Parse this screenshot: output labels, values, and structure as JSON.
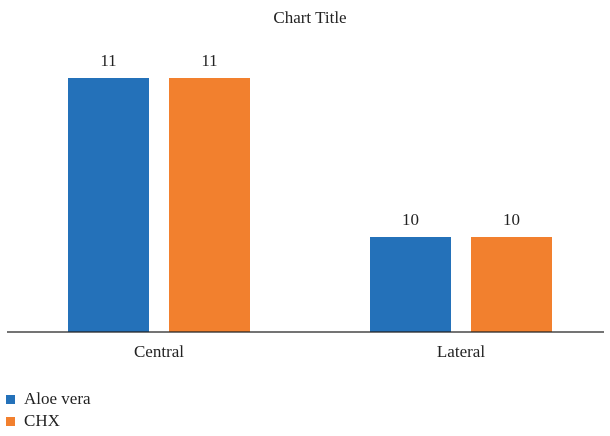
{
  "chart_data": {
    "type": "bar",
    "title": "Chart Title",
    "categories": [
      "Central",
      "Lateral"
    ],
    "series": [
      {
        "name": "Aloe vera",
        "color": "#2471b9",
        "values": [
          11,
          10
        ]
      },
      {
        "name": "CHX",
        "color": "#f2802e",
        "values": [
          11,
          10
        ]
      }
    ],
    "data_labels": true,
    "grid": false,
    "legend_position": "bottom-left"
  }
}
